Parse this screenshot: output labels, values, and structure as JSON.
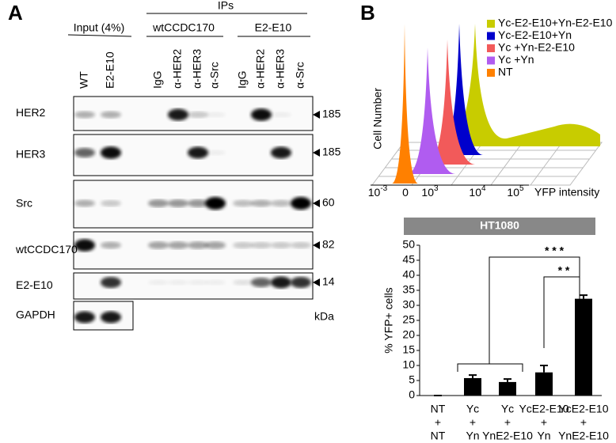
{
  "panel_a": {
    "label": "A",
    "ips": "IPs",
    "groups": [
      "Input (4%)",
      "wtCCDC170",
      "E2-E10"
    ],
    "lanes": [
      "WT",
      "E2-E10",
      "IgG",
      "α-HER2",
      "α-HER3",
      "α-Src",
      "IgG",
      "α-HER2",
      "α-HER3",
      "α-Src"
    ],
    "rows": [
      {
        "label": "HER2",
        "size": 185
      },
      {
        "label": "HER3",
        "size": 185
      },
      {
        "label": "Src",
        "size": 60
      },
      {
        "label": "wtCCDC170",
        "size": 82
      },
      {
        "label": "E2-E10",
        "size": 14
      },
      {
        "label": "GAPDH"
      }
    ],
    "size_unit": "kDa"
  },
  "panel_b": {
    "label": "B",
    "histogram": {
      "ylabel": "Cell Number",
      "xlabel": "YFP intensity",
      "xtick_labels": [
        {
          "base": "10",
          "exp": "-3"
        },
        {
          "base": "0"
        },
        {
          "base": "10",
          "exp": "3"
        },
        {
          "base": "10",
          "exp": "4"
        },
        {
          "base": "10",
          "exp": "5"
        }
      ],
      "legend": [
        {
          "name": "Yc-E2-E10+Yn-E2-E10",
          "color": "#c8cc00"
        },
        {
          "name": "Yc-E2-E10+Yn",
          "color": "#0000cc"
        },
        {
          "name": "Yc +Yn-E2-E10",
          "color": "#f25a5a"
        },
        {
          "name": "Yc +Yn",
          "color": "#b05cf0"
        },
        {
          "name": "NT",
          "color": "#ff8000"
        }
      ]
    }
  },
  "chart_data": {
    "type": "bar",
    "title": "HT1080",
    "ylabel": "% YFP+ cells",
    "categories": [
      [
        "NT",
        "+",
        "NT"
      ],
      [
        "Yc",
        "+",
        "Yn"
      ],
      [
        "Yc",
        "+",
        "YnE2-E10"
      ],
      [
        "YcE2-E10",
        "+",
        "Yn"
      ],
      [
        "YcE2-E10",
        "+",
        "YnE2-E10"
      ]
    ],
    "values": [
      0,
      5.8,
      4.5,
      7.7,
      32.2
    ],
    "errors": [
      0,
      1,
      1,
      2.3,
      1.2
    ],
    "color": "#000000",
    "ylim": [
      0,
      50
    ],
    "yticks": [
      0,
      5,
      10,
      15,
      20,
      25,
      30,
      35,
      40,
      45,
      50
    ],
    "annotations": [
      "* * *",
      "* *"
    ]
  }
}
